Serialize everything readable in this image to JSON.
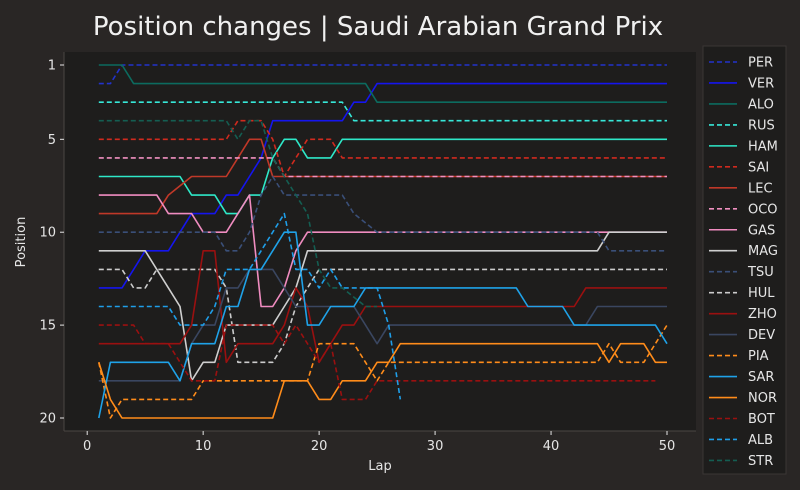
{
  "chart_data": {
    "type": "line",
    "title": "Position changes | Saudi Arabian Grand Prix",
    "xlabel": "Lap",
    "ylabel": "Position",
    "xlim": [
      -2,
      52.5
    ],
    "ylim": [
      20.7,
      0.3
    ],
    "xticks": [
      0,
      10,
      20,
      30,
      40,
      50
    ],
    "yticks": [
      1,
      5,
      10,
      15,
      20
    ],
    "grid": false,
    "legend_position": "right",
    "series": [
      {
        "name": "PER",
        "color": "#2233cc",
        "dash": true,
        "points": [
          [
            1,
            2
          ],
          [
            2,
            2
          ],
          [
            3,
            1
          ],
          [
            50,
            1
          ]
        ]
      },
      {
        "name": "VER",
        "color": "#1515ee",
        "dash": false,
        "points": [
          [
            1,
            13
          ],
          [
            3,
            13
          ],
          [
            4,
            12
          ],
          [
            5,
            11
          ],
          [
            7,
            11
          ],
          [
            8,
            10
          ],
          [
            9,
            9
          ],
          [
            11,
            9
          ],
          [
            12,
            8
          ],
          [
            13,
            8
          ],
          [
            14,
            7
          ],
          [
            15,
            6
          ],
          [
            16,
            4
          ],
          [
            17,
            4
          ],
          [
            22,
            4
          ],
          [
            23,
            3
          ],
          [
            24,
            3
          ],
          [
            25,
            2
          ],
          [
            50,
            2
          ]
        ]
      },
      {
        "name": "ALO",
        "color": "#0c6b5f",
        "dash": false,
        "points": [
          [
            1,
            1
          ],
          [
            3,
            1
          ],
          [
            4,
            2
          ],
          [
            24,
            2
          ],
          [
            25,
            3
          ],
          [
            50,
            3
          ]
        ]
      },
      {
        "name": "RUS",
        "color": "#37e8d8",
        "dash": true,
        "points": [
          [
            1,
            3
          ],
          [
            22,
            3
          ],
          [
            23,
            4
          ],
          [
            50,
            4
          ]
        ]
      },
      {
        "name": "HAM",
        "color": "#2ee8c8",
        "dash": false,
        "points": [
          [
            1,
            7
          ],
          [
            8,
            7
          ],
          [
            9,
            8
          ],
          [
            10,
            8
          ],
          [
            11,
            8
          ],
          [
            12,
            9
          ],
          [
            13,
            9
          ],
          [
            14,
            8
          ],
          [
            15,
            8
          ],
          [
            16,
            6
          ],
          [
            17,
            5
          ],
          [
            18,
            5
          ],
          [
            19,
            6
          ],
          [
            20,
            6
          ],
          [
            21,
            6
          ],
          [
            22,
            5
          ],
          [
            50,
            5
          ]
        ]
      },
      {
        "name": "SAI",
        "color": "#d02a1e",
        "dash": true,
        "points": [
          [
            1,
            5
          ],
          [
            12,
            5
          ],
          [
            13,
            4
          ],
          [
            15,
            4
          ],
          [
            16,
            5
          ],
          [
            17,
            7
          ],
          [
            18,
            6
          ],
          [
            19,
            5
          ],
          [
            21,
            5
          ],
          [
            22,
            6
          ],
          [
            50,
            6
          ]
        ]
      },
      {
        "name": "LEC",
        "color": "#c03828",
        "dash": false,
        "points": [
          [
            1,
            9
          ],
          [
            6,
            9
          ],
          [
            7,
            8
          ],
          [
            9,
            7
          ],
          [
            12,
            7
          ],
          [
            13,
            6
          ],
          [
            14,
            5
          ],
          [
            15,
            5
          ],
          [
            16,
            7
          ],
          [
            50,
            7
          ]
        ]
      },
      {
        "name": "OCO",
        "color": "#f090c0",
        "dash": true,
        "points": [
          [
            1,
            6
          ],
          [
            16,
            6
          ],
          [
            17,
            7
          ],
          [
            50,
            7
          ]
        ]
      },
      {
        "name": "GAS",
        "color": "#f08cc0",
        "dash": false,
        "points": [
          [
            1,
            8
          ],
          [
            6,
            8
          ],
          [
            7,
            9
          ],
          [
            9,
            9
          ],
          [
            10,
            10
          ],
          [
            12,
            10
          ],
          [
            13,
            9
          ],
          [
            14,
            8
          ],
          [
            15,
            14
          ],
          [
            16,
            14
          ],
          [
            17,
            13
          ],
          [
            18,
            11
          ],
          [
            19,
            10
          ],
          [
            50,
            10
          ]
        ]
      },
      {
        "name": "MAG",
        "color": "#cfcfcf",
        "dash": false,
        "points": [
          [
            1,
            11
          ],
          [
            5,
            11
          ],
          [
            6,
            12
          ],
          [
            7,
            13
          ],
          [
            8,
            14
          ],
          [
            9,
            18
          ],
          [
            10,
            17
          ],
          [
            11,
            17
          ],
          [
            12,
            15
          ],
          [
            16,
            15
          ],
          [
            17,
            14
          ],
          [
            18,
            13
          ],
          [
            19,
            11
          ],
          [
            44,
            11
          ],
          [
            45,
            10
          ],
          [
            50,
            10
          ]
        ]
      },
      {
        "name": "TSU",
        "color": "#3a4f78",
        "dash": true,
        "points": [
          [
            1,
            10
          ],
          [
            11,
            10
          ],
          [
            12,
            11
          ],
          [
            13,
            11
          ],
          [
            14,
            10
          ],
          [
            15,
            8
          ],
          [
            16,
            7
          ],
          [
            17,
            8
          ],
          [
            22,
            8
          ],
          [
            23,
            9
          ],
          [
            25,
            10
          ],
          [
            44,
            10
          ],
          [
            45,
            11
          ],
          [
            50,
            11
          ]
        ]
      },
      {
        "name": "HUL",
        "color": "#cccccc",
        "dash": true,
        "points": [
          [
            1,
            12
          ],
          [
            3,
            12
          ],
          [
            4,
            13
          ],
          [
            5,
            13
          ],
          [
            6,
            12
          ],
          [
            11,
            12
          ],
          [
            12,
            13
          ],
          [
            13,
            17
          ],
          [
            16,
            17
          ],
          [
            17,
            16
          ],
          [
            18,
            14
          ],
          [
            19,
            13
          ],
          [
            20,
            12
          ],
          [
            50,
            12
          ]
        ]
      },
      {
        "name": "ZHO",
        "color": "#9a1010",
        "dash": false,
        "points": [
          [
            1,
            16
          ],
          [
            8,
            16
          ],
          [
            9,
            15
          ],
          [
            10,
            11
          ],
          [
            11,
            11
          ],
          [
            12,
            17
          ],
          [
            13,
            16
          ],
          [
            16,
            16
          ],
          [
            17,
            15
          ],
          [
            18,
            13
          ],
          [
            19,
            14
          ],
          [
            20,
            17
          ],
          [
            21,
            16
          ],
          [
            22,
            15
          ],
          [
            23,
            15
          ],
          [
            24,
            14
          ],
          [
            42,
            14
          ],
          [
            43,
            13
          ],
          [
            50,
            13
          ]
        ]
      },
      {
        "name": "DEV",
        "color": "#3a4660",
        "dash": false,
        "points": [
          [
            1,
            18
          ],
          [
            8,
            18
          ],
          [
            9,
            16
          ],
          [
            10,
            15
          ],
          [
            11,
            15
          ],
          [
            12,
            13
          ],
          [
            13,
            13
          ],
          [
            14,
            12
          ],
          [
            16,
            12
          ],
          [
            17,
            13
          ],
          [
            18,
            14
          ],
          [
            23,
            14
          ],
          [
            24,
            15
          ],
          [
            25,
            16
          ],
          [
            26,
            15
          ],
          [
            43,
            15
          ],
          [
            44,
            14
          ],
          [
            50,
            14
          ]
        ]
      },
      {
        "name": "PIA",
        "color": "#ff8c1a",
        "dash": true,
        "points": [
          [
            1,
            17
          ],
          [
            2,
            20
          ],
          [
            3,
            19
          ],
          [
            9,
            19
          ],
          [
            10,
            18
          ],
          [
            19,
            18
          ],
          [
            20,
            16
          ],
          [
            23,
            16
          ],
          [
            24,
            17
          ],
          [
            25,
            18
          ],
          [
            26,
            17
          ],
          [
            44,
            17
          ],
          [
            45,
            16
          ],
          [
            46,
            17
          ],
          [
            48,
            17
          ],
          [
            49,
            16
          ],
          [
            50,
            15
          ]
        ]
      },
      {
        "name": "SAR",
        "color": "#1fa2e8",
        "dash": false,
        "points": [
          [
            1,
            20
          ],
          [
            2,
            17
          ],
          [
            7,
            17
          ],
          [
            8,
            18
          ],
          [
            9,
            16
          ],
          [
            11,
            16
          ],
          [
            12,
            14
          ],
          [
            13,
            14
          ],
          [
            14,
            12
          ],
          [
            15,
            12
          ],
          [
            16,
            11
          ],
          [
            17,
            10
          ],
          [
            18,
            10
          ],
          [
            19,
            15
          ],
          [
            20,
            15
          ],
          [
            21,
            14
          ],
          [
            22,
            14
          ],
          [
            23,
            14
          ],
          [
            24,
            13
          ],
          [
            25,
            13
          ],
          [
            37,
            13
          ],
          [
            38,
            14
          ],
          [
            41,
            14
          ],
          [
            42,
            15
          ],
          [
            49,
            15
          ],
          [
            50,
            16
          ]
        ]
      },
      {
        "name": "NOR",
        "color": "#ff8c1a",
        "dash": false,
        "points": [
          [
            1,
            17
          ],
          [
            2,
            19
          ],
          [
            3,
            20
          ],
          [
            16,
            20
          ],
          [
            17,
            18
          ],
          [
            19,
            18
          ],
          [
            20,
            19
          ],
          [
            21,
            19
          ],
          [
            22,
            18
          ],
          [
            24,
            18
          ],
          [
            25,
            17
          ],
          [
            26,
            17
          ],
          [
            27,
            16
          ],
          [
            44,
            16
          ],
          [
            45,
            17
          ],
          [
            46,
            16
          ],
          [
            48,
            16
          ],
          [
            49,
            17
          ],
          [
            50,
            17
          ]
        ]
      },
      {
        "name": "BOT",
        "color": "#9a1010",
        "dash": true,
        "points": [
          [
            1,
            15
          ],
          [
            4,
            15
          ],
          [
            5,
            16
          ],
          [
            7,
            16
          ],
          [
            8,
            17
          ],
          [
            9,
            18
          ],
          [
            11,
            18
          ],
          [
            12,
            15
          ],
          [
            16,
            15
          ],
          [
            17,
            16
          ],
          [
            18,
            15
          ],
          [
            19,
            16
          ],
          [
            20,
            17
          ],
          [
            21,
            16
          ],
          [
            22,
            19
          ],
          [
            24,
            19
          ],
          [
            25,
            18
          ],
          [
            49,
            18
          ]
        ]
      },
      {
        "name": "ALB",
        "color": "#1f9ee8",
        "dash": true,
        "points": [
          [
            1,
            14
          ],
          [
            7,
            14
          ],
          [
            8,
            15
          ],
          [
            10,
            15
          ],
          [
            11,
            14
          ],
          [
            12,
            12
          ],
          [
            14,
            12
          ],
          [
            15,
            11
          ],
          [
            16,
            10
          ],
          [
            17,
            9
          ],
          [
            18,
            12
          ],
          [
            19,
            12
          ],
          [
            20,
            13
          ],
          [
            21,
            12
          ],
          [
            22,
            13
          ],
          [
            23,
            13
          ],
          [
            25,
            13
          ],
          [
            26,
            15
          ],
          [
            27,
            19
          ]
        ]
      },
      {
        "name": "STR",
        "color": "#145e52",
        "dash": true,
        "points": [
          [
            1,
            4
          ],
          [
            12,
            4
          ],
          [
            13,
            5
          ],
          [
            14,
            4
          ],
          [
            15,
            4
          ],
          [
            16,
            6
          ],
          [
            17,
            7
          ],
          [
            18,
            8
          ],
          [
            19,
            9
          ],
          [
            20,
            12
          ],
          [
            21,
            13
          ],
          [
            22,
            13
          ],
          [
            24,
            14
          ],
          [
            25,
            14
          ]
        ]
      }
    ]
  }
}
